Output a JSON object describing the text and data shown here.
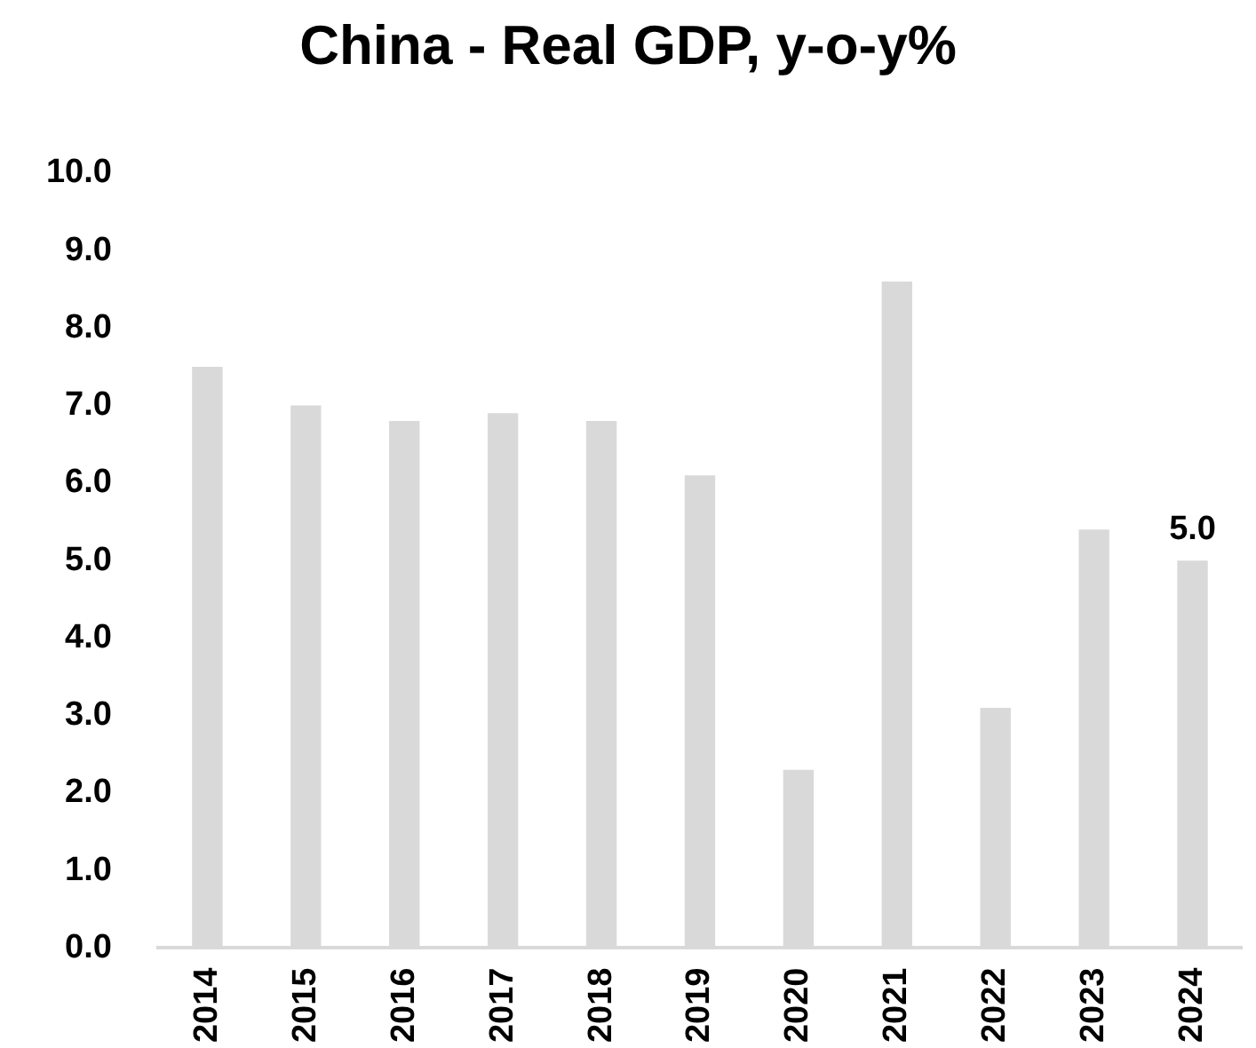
{
  "chart_data": {
    "type": "bar",
    "title": "China - Real GDP, y-o-y%",
    "categories": [
      "2014",
      "2015",
      "2016",
      "2017",
      "2018",
      "2019",
      "2020",
      "2021",
      "2022",
      "2023",
      "2024"
    ],
    "values": [
      7.5,
      7.0,
      6.8,
      6.9,
      6.8,
      6.1,
      2.3,
      8.6,
      3.1,
      5.4,
      5.0
    ],
    "value_labels": [
      null,
      null,
      null,
      null,
      null,
      null,
      null,
      null,
      null,
      null,
      "5.0"
    ],
    "color": "#d9d9d9",
    "ylim": [
      0,
      10
    ],
    "yticks": [
      {
        "value": 0,
        "label": "0.0"
      },
      {
        "value": 1,
        "label": "1.0"
      },
      {
        "value": 2,
        "label": "2.0"
      },
      {
        "value": 3,
        "label": "3.0"
      },
      {
        "value": 4,
        "label": "4.0"
      },
      {
        "value": 5,
        "label": "5.0"
      },
      {
        "value": 6,
        "label": "6.0"
      },
      {
        "value": 7,
        "label": "7.0"
      },
      {
        "value": 8,
        "label": "8.0"
      },
      {
        "value": 9,
        "label": "9.0"
      },
      {
        "value": 10,
        "label": "10.0"
      }
    ],
    "grid": false,
    "legend": false
  }
}
